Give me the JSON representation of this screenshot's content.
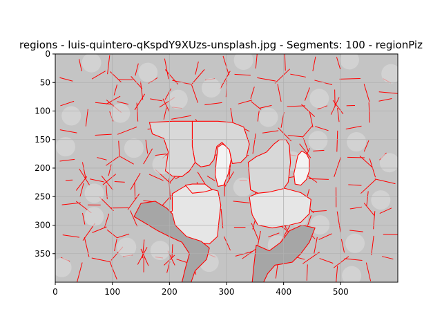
{
  "figure": {
    "title": "regions - luis-quintero-qKspdY9XUzs-unsplash.jpg - Segments: 100 - regionPiz"
  },
  "chart_data": {
    "type": "heatmap",
    "title": "regions - luis-quintero-qKspdY9XUzs-unsplash.jpg - Segments: 100 - regionPiz",
    "xlabel": "",
    "ylabel": "",
    "xlim": [
      0,
      600
    ],
    "ylim": [
      400,
      0
    ],
    "xticks": [
      0,
      100,
      200,
      300,
      400,
      500
    ],
    "yticks": [
      0,
      50,
      100,
      150,
      200,
      250,
      300,
      350
    ],
    "grid": true,
    "boundary_color": "#ff0000",
    "gray_levels": {
      "background": "#c4c4c4",
      "light_region": "#d8d8d8",
      "hand": "#e6e6e6",
      "highlight": "#f3f3f3",
      "shadow": "#a6a6a6"
    },
    "regions": [
      {
        "name": "left-hand-palm",
        "shade": "hand",
        "points": [
          [
            182,
            292
          ],
          [
            205,
            275
          ],
          [
            205,
            245
          ],
          [
            230,
            230
          ],
          [
            240,
            240
          ],
          [
            265,
            235
          ],
          [
            285,
            240
          ],
          [
            290,
            265
          ],
          [
            287,
            290
          ],
          [
            284,
            320
          ],
          [
            270,
            333
          ],
          [
            245,
            330
          ],
          [
            225,
            320
          ],
          [
            205,
            318
          ],
          [
            192,
            305
          ]
        ]
      },
      {
        "name": "left-finger",
        "shade": "hand",
        "points": [
          [
            228,
            230
          ],
          [
            240,
            228
          ],
          [
            262,
            228
          ],
          [
            275,
            238
          ],
          [
            260,
            242
          ],
          [
            240,
            244
          ]
        ]
      },
      {
        "name": "left-thumb-highlight",
        "shade": "highlight",
        "points": [
          [
            285,
            163
          ],
          [
            293,
            158
          ],
          [
            305,
            165
          ],
          [
            308,
            185
          ],
          [
            303,
            210
          ],
          [
            295,
            230
          ],
          [
            285,
            232
          ],
          [
            280,
            212
          ],
          [
            282,
            188
          ]
        ]
      },
      {
        "name": "right-hand-palm",
        "shade": "hand",
        "points": [
          [
            340,
            250
          ],
          [
            365,
            240
          ],
          [
            400,
            235
          ],
          [
            430,
            243
          ],
          [
            448,
            255
          ],
          [
            445,
            280
          ],
          [
            430,
            295
          ],
          [
            410,
            300
          ],
          [
            380,
            305
          ],
          [
            355,
            300
          ],
          [
            345,
            282
          ],
          [
            342,
            265
          ]
        ]
      },
      {
        "name": "right-thumb-highlight",
        "shade": "highlight",
        "points": [
          [
            425,
            178
          ],
          [
            432,
            170
          ],
          [
            440,
            175
          ],
          [
            445,
            185
          ],
          [
            445,
            205
          ],
          [
            440,
            220
          ],
          [
            430,
            230
          ],
          [
            420,
            228
          ],
          [
            418,
            210
          ]
        ]
      },
      {
        "name": "right-hand-fingers",
        "shade": "light_region",
        "points": [
          [
            338,
            190
          ],
          [
            352,
            180
          ],
          [
            370,
            172
          ],
          [
            383,
            158
          ],
          [
            393,
            150
          ],
          [
            404,
            150
          ],
          [
            410,
            160
          ],
          [
            412,
            190
          ],
          [
            408,
            225
          ],
          [
            400,
            236
          ],
          [
            375,
            242
          ],
          [
            355,
            244
          ],
          [
            342,
            238
          ]
        ]
      },
      {
        "name": "upper-center-light",
        "shade": "light_region",
        "points": [
          [
            240,
            118
          ],
          [
            285,
            118
          ],
          [
            310,
            120
          ],
          [
            330,
            128
          ],
          [
            340,
            158
          ],
          [
            335,
            180
          ],
          [
            325,
            190
          ],
          [
            310,
            192
          ],
          [
            305,
            168
          ],
          [
            292,
            155
          ],
          [
            283,
            162
          ],
          [
            278,
            185
          ],
          [
            270,
            195
          ],
          [
            255,
            198
          ],
          [
            245,
            190
          ],
          [
            240,
            162
          ]
        ]
      },
      {
        "name": "upper-left-light",
        "shade": "light_region",
        "points": [
          [
            165,
            120
          ],
          [
            205,
            118
          ],
          [
            240,
            118
          ],
          [
            240,
            162
          ],
          [
            245,
            190
          ],
          [
            235,
            205
          ],
          [
            222,
            215
          ],
          [
            205,
            214
          ],
          [
            193,
            205
          ],
          [
            198,
            172
          ],
          [
            190,
            148
          ],
          [
            170,
            140
          ]
        ]
      },
      {
        "name": "left-sleeve-shadow",
        "shade": "shadow",
        "points": [
          [
            138,
            285
          ],
          [
            150,
            262
          ],
          [
            175,
            258
          ],
          [
            195,
            270
          ],
          [
            205,
            280
          ],
          [
            210,
            300
          ],
          [
            230,
            320
          ],
          [
            255,
            328
          ],
          [
            270,
            340
          ],
          [
            265,
            360
          ],
          [
            245,
            380
          ],
          [
            238,
            400
          ],
          [
            222,
            400
          ],
          [
            228,
            375
          ],
          [
            235,
            350
          ],
          [
            222,
            330
          ],
          [
            200,
            320
          ],
          [
            180,
            310
          ],
          [
            160,
            298
          ]
        ]
      },
      {
        "name": "right-sleeve-shadow",
        "shade": "shadow",
        "points": [
          [
            352,
            335
          ],
          [
            375,
            345
          ],
          [
            395,
            330
          ],
          [
            410,
            310
          ],
          [
            432,
            300
          ],
          [
            455,
            305
          ],
          [
            445,
            330
          ],
          [
            430,
            350
          ],
          [
            415,
            365
          ],
          [
            398,
            368
          ],
          [
            385,
            370
          ],
          [
            372,
            385
          ],
          [
            365,
            400
          ],
          [
            345,
            400
          ],
          [
            348,
            370
          ]
        ]
      }
    ]
  }
}
